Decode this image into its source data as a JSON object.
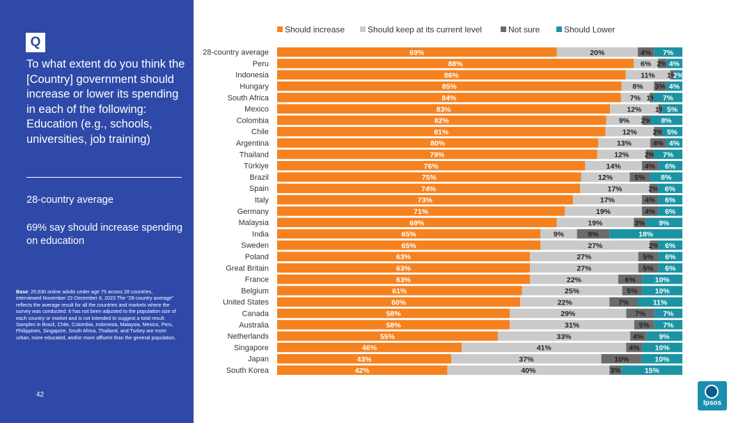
{
  "sidebar": {
    "badge": "Q",
    "question": "To what extent do you think the [Country] government should increase or lower its spending in each of the following: Education (e.g., schools, universities, job training)",
    "subhead": "28-country average",
    "summary": "69% say should increase spending on education",
    "base_label": "Base",
    "base_text": ": 20,630 online adults under age 75 across 28 countries, interviewed November 22-December 8, 2023 The “28-country average” reflects the average result for all the countries and markets where the survey was conducted. It has not been adjusted to the population size of each country or market and is not intended to suggest a total result. Samples in Brazil, Chile, Colombia, Indonesia, Malaysia, Mexico, Peru, Philippines, Singapore, South Africa, Thailand, and Turkey are more urban, more educated, and/or more affluent than the general population.",
    "page_number": "42"
  },
  "logo": {
    "text": "Ipsos"
  },
  "colors": {
    "increase": "#f5821f",
    "keep": "#cacaca",
    "not_sure": "#6b6b6b",
    "lower": "#1b93a3"
  },
  "chart_data": {
    "type": "bar",
    "orientation": "horizontal",
    "stacked": true,
    "title": "",
    "xlabel": "",
    "ylabel": "",
    "xlim": [
      0,
      100
    ],
    "legend_position": "top",
    "series_names": [
      "Should increase",
      "Should keep at its current level",
      "Not sure",
      "Should Lower"
    ],
    "rows": [
      {
        "country": "28-country average",
        "values": [
          69,
          20,
          4,
          7
        ]
      },
      {
        "country": "Peru",
        "values": [
          88,
          6,
          2,
          4
        ]
      },
      {
        "country": "Indonesia",
        "values": [
          86,
          11,
          1,
          2
        ]
      },
      {
        "country": "Hungary",
        "values": [
          85,
          8,
          3,
          4
        ]
      },
      {
        "country": "South Africa",
        "values": [
          84,
          7,
          1,
          7
        ]
      },
      {
        "country": "Mexico",
        "values": [
          83,
          12,
          1,
          5
        ]
      },
      {
        "country": "Colombia",
        "values": [
          82,
          9,
          2,
          8
        ]
      },
      {
        "country": "Chile",
        "values": [
          81,
          12,
          2,
          5
        ]
      },
      {
        "country": "Argentina",
        "values": [
          80,
          13,
          4,
          4
        ]
      },
      {
        "country": "Thailand",
        "values": [
          79,
          12,
          2,
          7
        ]
      },
      {
        "country": "Türkiye",
        "values": [
          76,
          14,
          4,
          6
        ]
      },
      {
        "country": "Brazil",
        "values": [
          75,
          12,
          5,
          8
        ]
      },
      {
        "country": "Spain",
        "values": [
          74,
          17,
          2,
          6
        ]
      },
      {
        "country": "Italy",
        "values": [
          73,
          17,
          4,
          6
        ]
      },
      {
        "country": "Germany",
        "values": [
          71,
          19,
          4,
          6
        ]
      },
      {
        "country": "Malaysia",
        "values": [
          69,
          19,
          3,
          9
        ]
      },
      {
        "country": "India",
        "values": [
          65,
          9,
          8,
          18
        ]
      },
      {
        "country": "Sweden",
        "values": [
          65,
          27,
          2,
          6
        ]
      },
      {
        "country": "Poland",
        "values": [
          63,
          27,
          5,
          6
        ]
      },
      {
        "country": "Great Britain",
        "values": [
          63,
          27,
          5,
          6
        ]
      },
      {
        "country": "France",
        "values": [
          63,
          22,
          6,
          10
        ]
      },
      {
        "country": "Belgium",
        "values": [
          61,
          25,
          5,
          10
        ]
      },
      {
        "country": "United States",
        "values": [
          60,
          22,
          7,
          11
        ]
      },
      {
        "country": "Canada",
        "values": [
          58,
          29,
          7,
          7
        ]
      },
      {
        "country": "Australia",
        "values": [
          58,
          31,
          5,
          7
        ]
      },
      {
        "country": "Netherlands",
        "values": [
          55,
          33,
          4,
          9
        ]
      },
      {
        "country": "Singapore",
        "values": [
          46,
          41,
          4,
          10
        ]
      },
      {
        "country": "Japan",
        "values": [
          43,
          37,
          10,
          10
        ]
      },
      {
        "country": "South Korea",
        "values": [
          42,
          40,
          3,
          15
        ]
      }
    ]
  }
}
